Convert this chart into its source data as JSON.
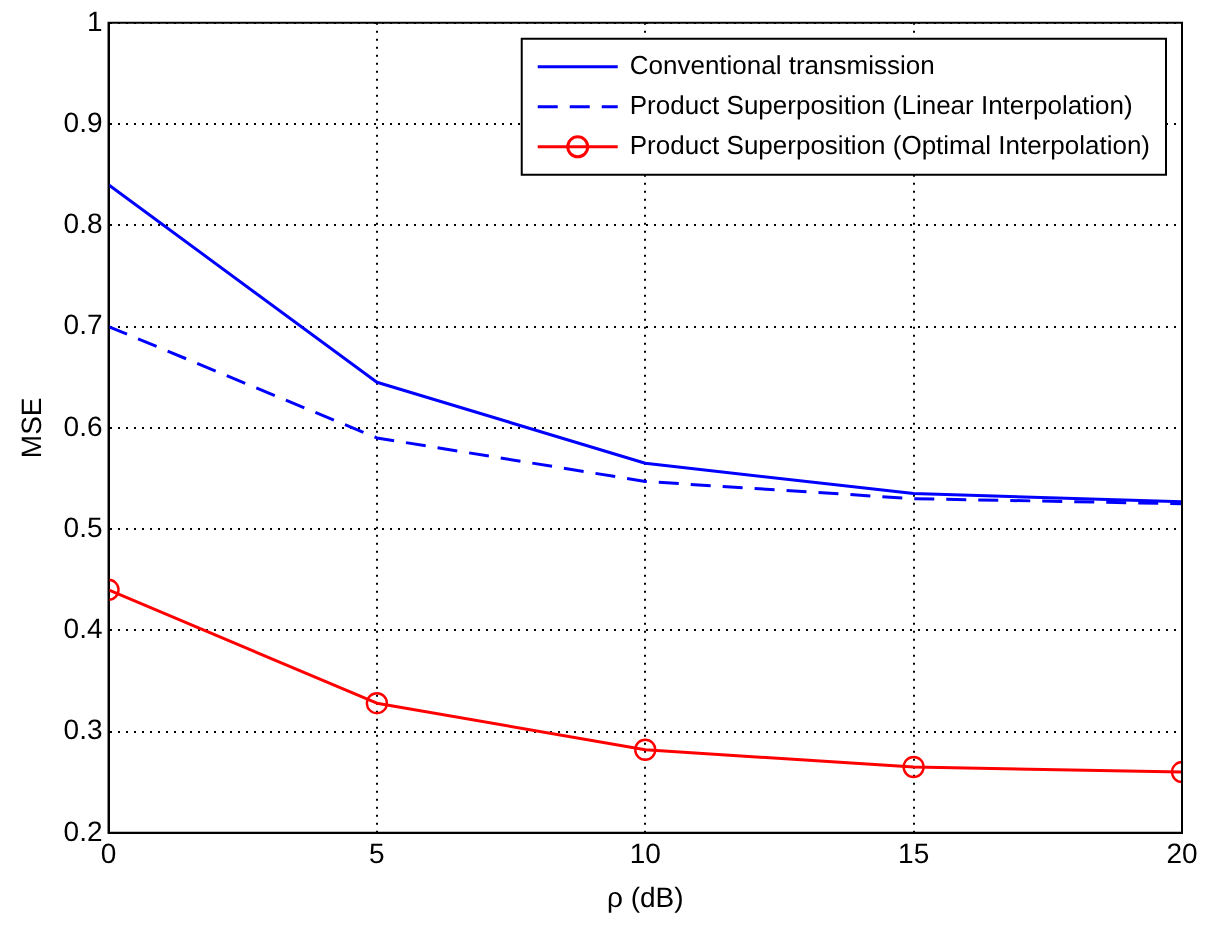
{
  "chart_data": {
    "type": "line",
    "xlabel": "ρ (dB)",
    "ylabel": "MSE",
    "x": [
      0,
      5,
      10,
      15,
      20
    ],
    "xlim": [
      0,
      20
    ],
    "xticks": [
      0,
      5,
      10,
      15,
      20
    ],
    "ylim": [
      0.2,
      1
    ],
    "yticks": [
      0.2,
      0.3,
      0.4,
      0.5,
      0.6,
      0.7,
      0.8,
      0.9,
      1
    ],
    "grid": true,
    "legend": "top right",
    "series": [
      {
        "name": "Conventional transmission",
        "color": "#0000ff",
        "values": [
          0.84,
          0.645,
          0.565,
          0.535,
          0.527
        ],
        "line_style": "solid",
        "marker": "none"
      },
      {
        "name": "Product Superposition (Linear Interpolation)",
        "color": "#0000ff",
        "values": [
          0.7,
          0.59,
          0.547,
          0.53,
          0.525
        ],
        "line_style": "dashed",
        "marker": "none"
      },
      {
        "name": "Product Superposition (Optimal Interpolation)",
        "color": "#ff0000",
        "values": [
          0.44,
          0.328,
          0.282,
          0.265,
          0.26
        ],
        "line_style": "solid",
        "marker": "circle"
      }
    ]
  }
}
